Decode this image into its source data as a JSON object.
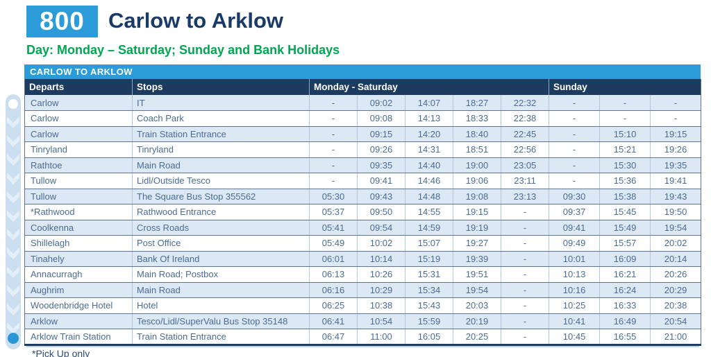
{
  "header": {
    "route_number": "800",
    "title": "Carlow to Arklow",
    "day_line": "Day: Monday – Saturday; Sunday and Bank Holidays"
  },
  "table": {
    "caption": "CARLOW TO ARKLOW",
    "columns": {
      "departs": "Departs",
      "stops": "Stops",
      "mon_sat": "Monday - Saturday",
      "sunday": "Sunday"
    },
    "rows": [
      {
        "departs": "Carlow",
        "stops": "IT",
        "mon_sat": [
          "-",
          "09:02",
          "14:07",
          "18:27",
          "22:32"
        ],
        "sunday": [
          "-",
          "-",
          "-"
        ]
      },
      {
        "departs": "Carlow",
        "stops": "Coach Park",
        "mon_sat": [
          "-",
          "09:08",
          "14:13",
          "18:33",
          "22:38"
        ],
        "sunday": [
          "-",
          "-",
          "-"
        ]
      },
      {
        "departs": "Carlow",
        "stops": "Train Station Entrance",
        "mon_sat": [
          "-",
          "09:15",
          "14:20",
          "18:40",
          "22:45"
        ],
        "sunday": [
          "-",
          "15:10",
          "19:15"
        ]
      },
      {
        "departs": "Tinryland",
        "stops": "Tinryland",
        "mon_sat": [
          "-",
          "09:26",
          "14:31",
          "18:51",
          "22:56"
        ],
        "sunday": [
          "-",
          "15:21",
          "19:26"
        ]
      },
      {
        "departs": "Rathtoe",
        "stops": "Main Road",
        "mon_sat": [
          "-",
          "09:35",
          "14:40",
          "19:00",
          "23:05"
        ],
        "sunday": [
          "-",
          "15:30",
          "19:35"
        ]
      },
      {
        "departs": "Tullow",
        "stops": "Lidl/Outside Tesco",
        "mon_sat": [
          "-",
          "09:41",
          "14:46",
          "19:06",
          "23:11"
        ],
        "sunday": [
          "-",
          "15:36",
          "19:41"
        ]
      },
      {
        "departs": "Tullow",
        "stops": "The Square Bus Stop 355562",
        "mon_sat": [
          "05:30",
          "09:43",
          "14:48",
          "19:08",
          "23:13"
        ],
        "sunday": [
          "09:30",
          "15:38",
          "19:43"
        ]
      },
      {
        "departs": "*Rathwood",
        "stops": "Rathwood Entrance",
        "mon_sat": [
          "05:37",
          "09:50",
          "14:55",
          "19:15",
          "-"
        ],
        "sunday": [
          "09:37",
          "15:45",
          "19:50"
        ]
      },
      {
        "departs": "Coolkenna",
        "stops": "Cross Roads",
        "mon_sat": [
          "05:41",
          "09:54",
          "14:59",
          "19:19",
          "-"
        ],
        "sunday": [
          "09:41",
          "15:49",
          "19:54"
        ]
      },
      {
        "departs": "Shillelagh",
        "stops": "Post Office",
        "mon_sat": [
          "05:49",
          "10:02",
          "15:07",
          "19:27",
          "-"
        ],
        "sunday": [
          "09:49",
          "15:57",
          "20:02"
        ]
      },
      {
        "departs": "Tinahely",
        "stops": "Bank Of Ireland",
        "mon_sat": [
          "06:01",
          "10:14",
          "15:19",
          "19:39",
          "-"
        ],
        "sunday": [
          "10:01",
          "16:09",
          "20:14"
        ]
      },
      {
        "departs": "Annacurragh",
        "stops": "Main Road; Postbox",
        "mon_sat": [
          "06:13",
          "10:26",
          "15:31",
          "19:51",
          "-"
        ],
        "sunday": [
          "10:13",
          "16:21",
          "20:26"
        ]
      },
      {
        "departs": "Aughrim",
        "stops": "Main Road",
        "mon_sat": [
          "06:16",
          "10:29",
          "15:34",
          "19:54",
          "-"
        ],
        "sunday": [
          "10:16",
          "16:24",
          "20:29"
        ]
      },
      {
        "departs": "Woodenbridge Hotel",
        "stops": "Hotel",
        "mon_sat": [
          "06:25",
          "10:38",
          "15:43",
          "20:03",
          "-"
        ],
        "sunday": [
          "10:25",
          "16:33",
          "20:38"
        ]
      },
      {
        "departs": "Arklow",
        "stops": "Tesco/Lidl/SuperValu Bus Stop 35148",
        "mon_sat": [
          "06:41",
          "10:54",
          "15:59",
          "20:19",
          "-"
        ],
        "sunday": [
          "10:41",
          "16:49",
          "20:54"
        ]
      },
      {
        "departs": "Arklow Train Station",
        "stops": "Train Station Entrance",
        "mon_sat": [
          "06:47",
          "11:00",
          "16:05",
          "20:25",
          "-"
        ],
        "sunday": [
          "10:45",
          "16:55",
          "21:00"
        ]
      }
    ]
  },
  "footnote": "*Pick Up only",
  "colors": {
    "brand_blue": "#2B9CD8",
    "header_navy": "#1D3A5F",
    "title_navy": "#1A3B68",
    "day_green": "#00A651",
    "row_shade": "#DCE8F4",
    "cell_text": "#4A6C94",
    "ribbon_blue": "#CBDFF1"
  }
}
